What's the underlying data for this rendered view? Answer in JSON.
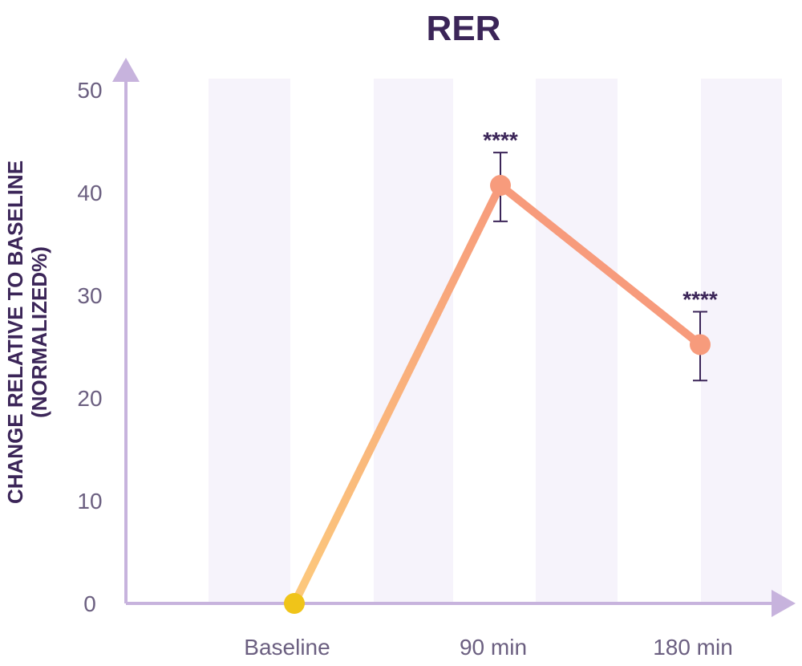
{
  "chart_data": {
    "type": "line",
    "title": "RER",
    "ylabel_line1": "CHANGE RELATIVE TO BASELINE",
    "ylabel_line2": "(NORMALIZED%)",
    "xlabel": "",
    "categories": [
      "Baseline",
      "90 min",
      "180 min"
    ],
    "values": [
      0,
      40.7,
      25.2
    ],
    "error_low": [
      null,
      37.2,
      21.7
    ],
    "error_high": [
      null,
      43.9,
      28.4
    ],
    "significance": [
      "",
      "****",
      "****"
    ],
    "ylim": [
      0,
      50
    ],
    "yticks": [
      0,
      10,
      20,
      30,
      40,
      50
    ],
    "grid": false,
    "legend": "none",
    "colors": {
      "axis": "#c7b3dd",
      "band": "#f6f3fb",
      "line_start": "#fcc97c",
      "line_end": "#f79b7c",
      "point_baseline": "#f0c419",
      "point": "#f79b7c",
      "errorbar": "#3b2558",
      "title": "#3b2558"
    }
  }
}
